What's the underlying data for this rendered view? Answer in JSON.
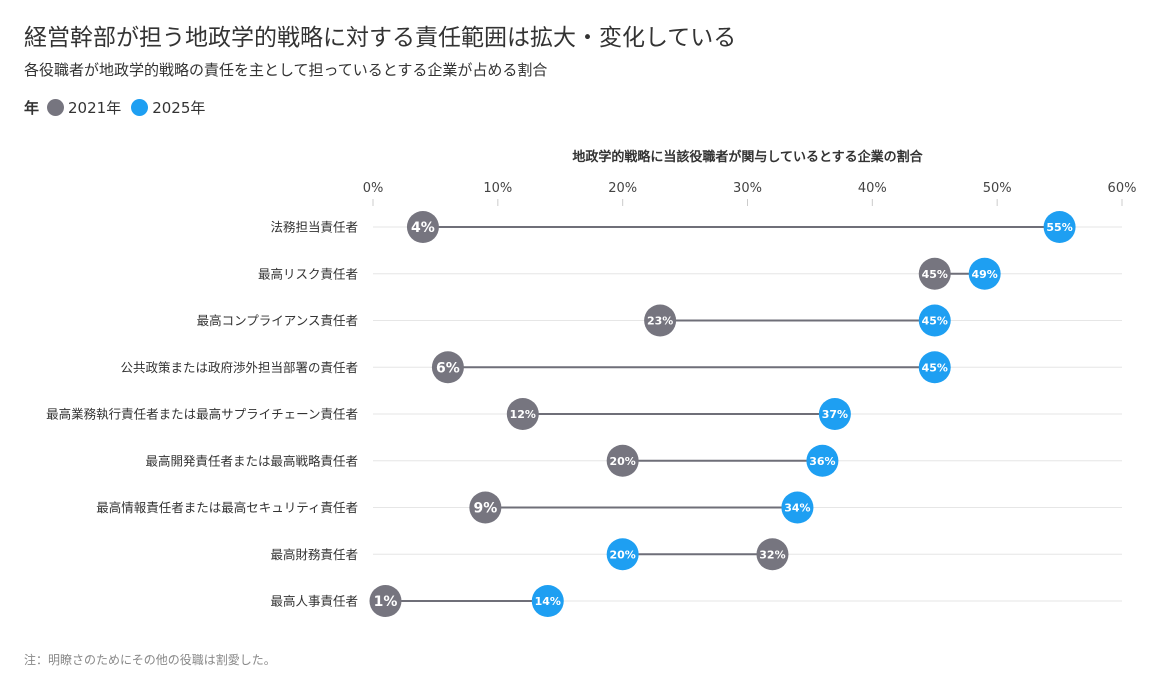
{
  "header": {
    "title": "経営幹部が担う地政学的戦略に対する責任範囲は拡大・変化している",
    "subtitle": "各役職者が地政学的戦略の責任を主として担っているとする企業が占める割合"
  },
  "legend": {
    "title": "年",
    "items": [
      {
        "label": "2021年",
        "color": "#76757f"
      },
      {
        "label": "2025年",
        "color": "#1e9ff2"
      }
    ]
  },
  "footer": {
    "note": "注：明瞭さのためにその他の役職は割愛した。"
  },
  "chart_data": {
    "type": "dumbbell",
    "title": "地政学的戦略に当該役職者が関与しているとする企業の割合",
    "xlim": [
      0,
      60
    ],
    "ticks": [
      "0%",
      "10%",
      "20%",
      "30%",
      "40%",
      "50%",
      "60%"
    ],
    "tick_values": [
      0,
      10,
      20,
      30,
      40,
      50,
      60
    ],
    "grid": true,
    "categories": [
      "法務担当責任者",
      "最高リスク責任者",
      "最高コンプライアンス責任者",
      "公共政策または政府渉外担当部署の責任者",
      "最高業務執行責任者または最高サプライチェーン責任者",
      "最高開発責任者または最高戦略責任者",
      "最高情報責任者または最高セキュリティ責任者",
      "最高財務責任者",
      "最高人事責任者"
    ],
    "series": [
      {
        "name": "2021年",
        "color": "#76757f",
        "values": [
          4,
          45,
          23,
          6,
          12,
          20,
          9,
          32,
          1
        ],
        "labels": [
          "4%",
          "45%",
          "23%",
          "6%",
          "12%",
          "20%",
          "9%",
          "32%",
          "1%"
        ]
      },
      {
        "name": "2025年",
        "color": "#1e9ff2",
        "values": [
          55,
          49,
          45,
          45,
          37,
          36,
          34,
          20,
          14
        ],
        "labels": [
          "55%",
          "49%",
          "45%",
          "45%",
          "37%",
          "36%",
          "34%",
          "20%",
          "14%"
        ]
      }
    ]
  }
}
